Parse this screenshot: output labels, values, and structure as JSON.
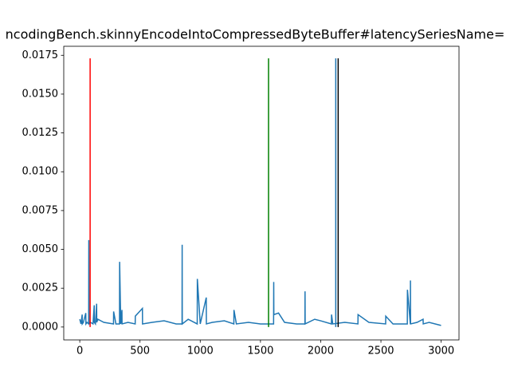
{
  "chart_data": {
    "type": "line",
    "title": "ncodingBench.skinnyEncodeIntoCompressedByteBuffer#latencySeriesName=",
    "x": [
      0,
      10,
      20,
      21,
      30,
      50,
      51,
      60,
      74,
      75,
      76,
      90,
      110,
      120,
      121,
      130,
      140,
      141,
      150,
      200,
      280,
      281,
      300,
      330,
      331,
      340,
      350,
      351,
      400,
      460,
      461,
      520,
      521,
      600,
      700,
      800,
      849,
      850,
      851,
      900,
      975,
      976,
      1000,
      1050,
      1051,
      1100,
      1200,
      1279,
      1280,
      1300,
      1400,
      1500,
      1609,
      1610,
      1611,
      1650,
      1700,
      1800,
      1869,
      1870,
      1871,
      1950,
      2000,
      2089,
      2090,
      2100,
      2200,
      2309,
      2310,
      2400,
      2539,
      2540,
      2600,
      2719,
      2720,
      2744,
      2745,
      2746,
      2800,
      2850,
      2851,
      2900,
      2999
    ],
    "series": [
      {
        "color": "#1f77b4",
        "values": [
          0.0005,
          0.0002,
          0.0008,
          0.0002,
          0.0003,
          0.0009,
          0.0002,
          0.0003,
          0.0002,
          0.0056,
          0.0002,
          0.0003,
          0.0002,
          0.0014,
          0.0003,
          0.0002,
          0.0015,
          0.0003,
          0.0005,
          0.0003,
          0.0002,
          0.001,
          0.0002,
          0.0002,
          0.0042,
          0.0002,
          0.0011,
          0.0002,
          0.0003,
          0.0002,
          0.0007,
          0.0012,
          0.0002,
          0.0003,
          0.0004,
          0.0002,
          0.0002,
          0.0053,
          0.0002,
          0.0005,
          0.0002,
          0.0031,
          0.0002,
          0.0019,
          0.0002,
          0.0003,
          0.0004,
          0.0002,
          0.0011,
          0.0002,
          0.0003,
          0.0002,
          0.0002,
          0.0029,
          0.0008,
          0.0009,
          0.0003,
          0.0002,
          0.0002,
          0.0023,
          0.0002,
          0.0005,
          0.0004,
          0.0002,
          0.0008,
          0.0002,
          0.0003,
          0.0002,
          0.0008,
          0.0003,
          0.0002,
          0.0007,
          0.0002,
          0.0002,
          0.0024,
          0.0002,
          0.003,
          0.0002,
          0.0003,
          0.0005,
          0.0002,
          0.0003,
          0.0001
        ]
      }
    ],
    "vlines": [
      {
        "x": 86,
        "ymin": 0,
        "ymax": 0.0173,
        "color": "red"
      },
      {
        "x": 1567,
        "ymin": 0,
        "ymax": 0.0173,
        "color": "green"
      },
      {
        "x": 2125,
        "ymin": 0,
        "ymax": 0.0173,
        "color": "#1f77b4"
      },
      {
        "x": 2145,
        "ymin": 0,
        "ymax": 0.0173,
        "color": "black"
      }
    ],
    "xlim": [
      -133,
      3148
    ],
    "xticks": [
      0,
      500,
      1000,
      1500,
      2000,
      2500,
      3000
    ],
    "ylim": [
      -0.00083,
      0.01808
    ],
    "yticks": [
      {
        "value": 0,
        "label": "0.0000"
      },
      0.0025,
      {
        "value": 0.005,
        "label": "0.0050"
      },
      0.0075,
      {
        "value": 0.01,
        "label": "0.0100"
      },
      0.0125,
      {
        "value": 0.015,
        "label": "0.0150"
      },
      0.0175
    ]
  }
}
